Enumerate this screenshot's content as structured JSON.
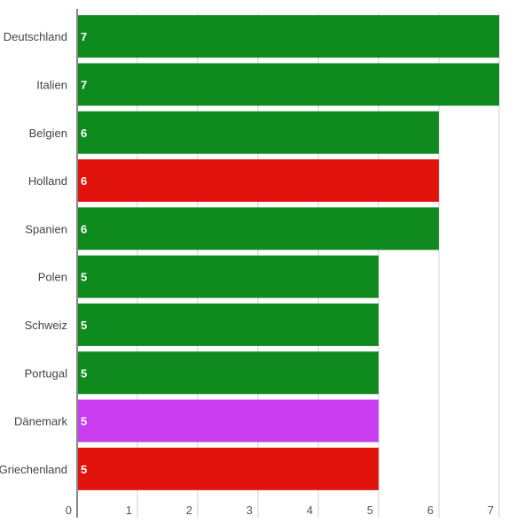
{
  "chart_data": {
    "type": "bar",
    "orientation": "horizontal",
    "title": "",
    "xlabel": "",
    "ylabel": "",
    "categories": [
      "Deutschland",
      "Italien",
      "Belgien",
      "Holland",
      "Spanien",
      "Polen",
      "Schweiz",
      "Portugal",
      "Dänemark",
      "Griechenland"
    ],
    "values": [
      7,
      7,
      6,
      6,
      6,
      5,
      5,
      5,
      5,
      5
    ],
    "data_labels": [
      "7",
      "7",
      "6",
      "6",
      "6",
      "5",
      "5",
      "5",
      "5",
      "5"
    ],
    "bar_colors": [
      "#0e8a1f",
      "#0e8a1f",
      "#0e8a1f",
      "#e0140c",
      "#0e8a1f",
      "#0e8a1f",
      "#0e8a1f",
      "#0e8a1f",
      "#c83ef0",
      "#e0140c"
    ],
    "xlim": [
      0,
      7
    ],
    "x_ticks": [
      "0",
      "1",
      "2",
      "3",
      "4",
      "5",
      "6",
      "7"
    ],
    "grid": true,
    "legend": "none"
  }
}
